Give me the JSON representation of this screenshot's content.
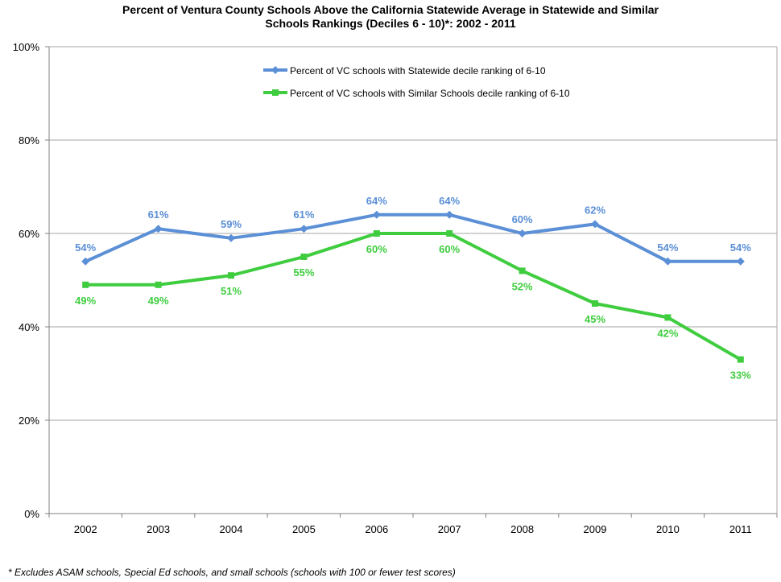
{
  "chart_data": {
    "type": "line",
    "title_line1": "Percent of Ventura County Schools Above the California Statewide Average in Statewide and Similar",
    "title_line2": "Schools Rankings (Deciles 6 - 10)*: 2002 - 2011",
    "x": [
      "2002",
      "2003",
      "2004",
      "2005",
      "2006",
      "2007",
      "2008",
      "2009",
      "2010",
      "2011"
    ],
    "ylim": [
      0,
      100
    ],
    "yticks": [
      0,
      20,
      40,
      60,
      80,
      100
    ],
    "ytick_labels": [
      "0%",
      "20%",
      "40%",
      "60%",
      "80%",
      "100%"
    ],
    "grid": "horizontal",
    "legend_position": "top-center",
    "series": [
      {
        "name": "Percent of VC schools with Statewide decile ranking of 6-10",
        "color": "#5b8fd6",
        "marker": "diamond",
        "values": [
          54,
          61,
          59,
          61,
          64,
          64,
          60,
          62,
          54,
          54
        ],
        "labels": [
          "54%",
          "61%",
          "59%",
          "61%",
          "64%",
          "64%",
          "60%",
          "62%",
          "54%",
          "54%"
        ]
      },
      {
        "name": "Percent of VC schools with Similar Schools decile ranking of 6-10",
        "color": "#3fcd3f",
        "marker": "square",
        "values": [
          49,
          49,
          51,
          55,
          60,
          60,
          52,
          45,
          42,
          33
        ],
        "labels": [
          "49%",
          "49%",
          "51%",
          "55%",
          "60%",
          "60%",
          "52%",
          "45%",
          "42%",
          "33%"
        ]
      }
    ],
    "footnote": "*  Excludes ASAM schools, Special Ed schools, and small schools (schools with 100 or fewer test scores)"
  }
}
